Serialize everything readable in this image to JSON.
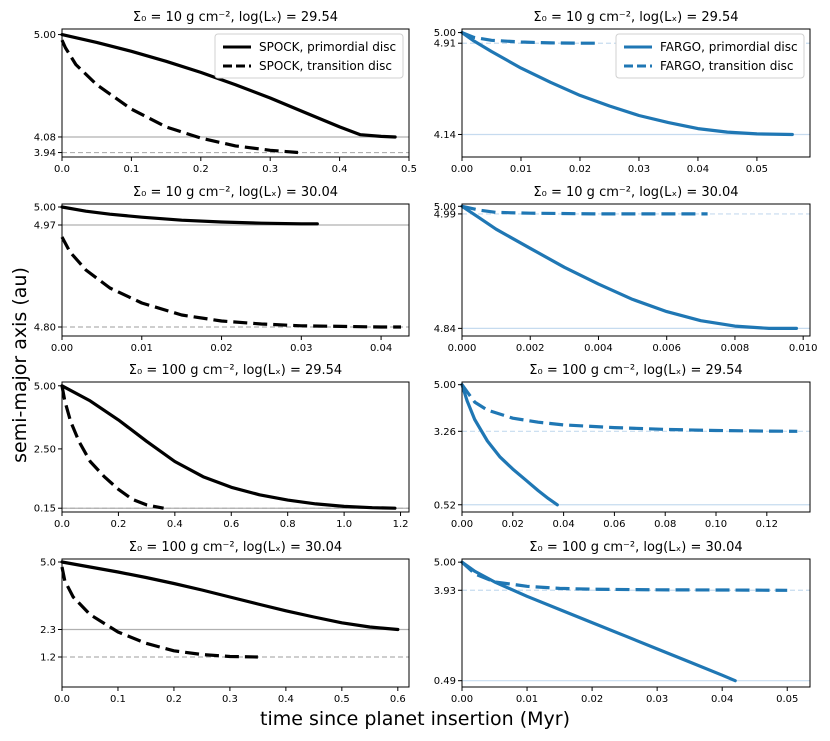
{
  "figure": {
    "ylabel": "semi-major axis (au)",
    "xlabel": "time since planet insertion (Myr)"
  },
  "colors": {
    "spock": "#000000",
    "fargo": "#1f77b4",
    "spock_ref": "#b0b0b0",
    "fargo_ref": "#c6dbef"
  },
  "chart_data": [
    {
      "type": "line",
      "title": "Σ₀ = 10 g cm⁻², log(Lₓ) = 29.54",
      "code": "SPOCK",
      "xlim": [
        0,
        0.5
      ],
      "ylim": [
        3.9,
        5.05
      ],
      "xticks": [
        0,
        0.1,
        0.2,
        0.3,
        0.4,
        0.5
      ],
      "xticklabels": [
        "0.0",
        "0.1",
        "0.2",
        "0.3",
        "0.4",
        "0.5"
      ],
      "yticks": [
        5.0,
        4.08,
        3.94
      ],
      "yticklabels": [
        "5.00",
        "4.08",
        "3.94"
      ],
      "legend": [
        "SPOCK, primordial disc",
        "SPOCK, transition disc"
      ],
      "legend_loc": "top-right",
      "series": [
        {
          "name": "SPOCK, primordial disc",
          "style": "solid",
          "ref": 4.08,
          "x": [
            0,
            0.05,
            0.1,
            0.15,
            0.2,
            0.25,
            0.3,
            0.35,
            0.4,
            0.43,
            0.46,
            0.48
          ],
          "y": [
            5.0,
            4.93,
            4.85,
            4.76,
            4.66,
            4.55,
            4.43,
            4.3,
            4.17,
            4.1,
            4.085,
            4.08
          ]
        },
        {
          "name": "SPOCK, transition disc",
          "style": "dashed",
          "ref": 3.94,
          "x": [
            0,
            0.005,
            0.02,
            0.05,
            0.1,
            0.15,
            0.2,
            0.25,
            0.3,
            0.34
          ],
          "y": [
            4.95,
            4.88,
            4.73,
            4.55,
            4.33,
            4.17,
            4.07,
            4.0,
            3.96,
            3.94
          ]
        }
      ]
    },
    {
      "type": "line",
      "title": "Σ₀ = 10 g cm⁻², log(Lₓ) = 29.54",
      "code": "FARGO",
      "xlim": [
        0,
        0.059
      ],
      "ylim": [
        3.95,
        5.03
      ],
      "xticks": [
        0,
        0.01,
        0.02,
        0.03,
        0.04,
        0.05
      ],
      "xticklabels": [
        "0.00",
        "0.01",
        "0.02",
        "0.03",
        "0.04",
        "0.05"
      ],
      "yticks": [
        5.0,
        4.91,
        4.14
      ],
      "yticklabels": [
        "5.00",
        "4.91",
        "4.14"
      ],
      "legend": [
        "FARGO, primordial disc",
        "FARGO, transition disc"
      ],
      "legend_loc": "top-right",
      "series": [
        {
          "name": "FARGO, primordial disc",
          "style": "solid",
          "ref": 4.14,
          "x": [
            0,
            0.002,
            0.005,
            0.01,
            0.015,
            0.02,
            0.025,
            0.03,
            0.035,
            0.04,
            0.045,
            0.05,
            0.056
          ],
          "y": [
            5.0,
            4.93,
            4.84,
            4.7,
            4.58,
            4.47,
            4.38,
            4.3,
            4.24,
            4.19,
            4.16,
            4.145,
            4.14
          ]
        },
        {
          "name": "FARGO, transition disc",
          "style": "dashed",
          "ref": 4.91,
          "x": [
            0,
            0.002,
            0.005,
            0.01,
            0.015,
            0.02,
            0.0235
          ],
          "y": [
            5.0,
            4.96,
            4.935,
            4.92,
            4.913,
            4.91,
            4.91
          ]
        }
      ]
    },
    {
      "type": "line",
      "title": "Σ₀ = 10 g cm⁻², log(Lₓ) = 30.04",
      "code": "SPOCK",
      "xlim": [
        0,
        0.0435
      ],
      "ylim": [
        4.785,
        5.005
      ],
      "xticks": [
        0,
        0.01,
        0.02,
        0.03,
        0.04
      ],
      "xticklabels": [
        "0.00",
        "0.01",
        "0.02",
        "0.03",
        "0.04"
      ],
      "yticks": [
        5.0,
        4.97,
        4.8
      ],
      "yticklabels": [
        "5.00",
        "4.97",
        "4.80"
      ],
      "series": [
        {
          "name": "SPOCK, primordial disc",
          "style": "solid",
          "ref": 4.97,
          "x": [
            0,
            0.003,
            0.006,
            0.01,
            0.015,
            0.02,
            0.025,
            0.03,
            0.032
          ],
          "y": [
            5.0,
            4.993,
            4.988,
            4.983,
            4.978,
            4.975,
            4.973,
            4.972,
            4.972
          ]
        },
        {
          "name": "SPOCK, transition disc",
          "style": "dashed",
          "ref": 4.8,
          "x": [
            0,
            0.001,
            0.003,
            0.006,
            0.01,
            0.015,
            0.02,
            0.025,
            0.03,
            0.035,
            0.04,
            0.0425
          ],
          "y": [
            4.95,
            4.925,
            4.895,
            4.865,
            4.84,
            4.82,
            4.81,
            4.805,
            4.802,
            4.801,
            4.8,
            4.8
          ]
        }
      ]
    },
    {
      "type": "line",
      "title": "Σ₀ = 10 g cm⁻², log(Lₓ) = 30.04",
      "code": "FARGO",
      "xlim": [
        0,
        0.0102
      ],
      "ylim": [
        4.83,
        5.003
      ],
      "xticks": [
        0,
        0.002,
        0.004,
        0.006,
        0.008,
        0.01
      ],
      "xticklabels": [
        "0.000",
        "0.002",
        "0.004",
        "0.006",
        "0.008",
        "0.010"
      ],
      "yticks": [
        5.0,
        4.99,
        4.84
      ],
      "yticklabels": [
        "5.00",
        "4.99",
        "4.84"
      ],
      "series": [
        {
          "name": "FARGO, primordial disc",
          "style": "solid",
          "ref": 4.84,
          "x": [
            0,
            0.0005,
            0.001,
            0.002,
            0.003,
            0.004,
            0.005,
            0.006,
            0.007,
            0.008,
            0.009,
            0.0098
          ],
          "y": [
            5.0,
            4.985,
            4.97,
            4.945,
            4.92,
            4.898,
            4.878,
            4.862,
            4.85,
            4.843,
            4.84,
            4.84
          ]
        },
        {
          "name": "FARGO, transition disc",
          "style": "dashed",
          "ref": 4.99,
          "x": [
            0,
            0.0005,
            0.001,
            0.002,
            0.004,
            0.006,
            0.0072
          ],
          "y": [
            5.0,
            4.995,
            4.992,
            4.991,
            4.99,
            4.99,
            4.99
          ]
        }
      ]
    },
    {
      "type": "line",
      "title": "Σ₀ = 100 g cm⁻², log(Lₓ) = 29.54",
      "code": "SPOCK",
      "xlim": [
        0,
        1.23
      ],
      "ylim": [
        0.0,
        5.15
      ],
      "xticks": [
        0,
        0.2,
        0.4,
        0.6,
        0.8,
        1.0,
        1.2
      ],
      "xticklabels": [
        "0.0",
        "0.2",
        "0.4",
        "0.6",
        "0.8",
        "1.0",
        "1.2"
      ],
      "yticks": [
        5.0,
        2.5,
        0.15
      ],
      "yticklabels": [
        "5.00",
        "2.50",
        "0.15"
      ],
      "series": [
        {
          "name": "SPOCK, primordial disc",
          "style": "solid",
          "ref": 0.15,
          "x": [
            0,
            0.1,
            0.2,
            0.3,
            0.4,
            0.5,
            0.6,
            0.7,
            0.8,
            0.9,
            1.0,
            1.1,
            1.18
          ],
          "y": [
            5.0,
            4.4,
            3.65,
            2.8,
            2.0,
            1.4,
            0.98,
            0.68,
            0.47,
            0.32,
            0.22,
            0.17,
            0.15
          ]
        },
        {
          "name": "SPOCK, transition disc",
          "style": "dashed",
          "ref": 0.15,
          "x": [
            0,
            0.01,
            0.03,
            0.06,
            0.1,
            0.15,
            0.2,
            0.25,
            0.3,
            0.36
          ],
          "y": [
            5.0,
            4.4,
            3.6,
            2.8,
            2.0,
            1.4,
            0.9,
            0.5,
            0.28,
            0.15
          ]
        }
      ]
    },
    {
      "type": "line",
      "title": "Σ₀ = 100 g cm⁻², log(Lₓ) = 29.54",
      "code": "FARGO",
      "xlim": [
        0,
        0.137
      ],
      "ylim": [
        0.25,
        5.1
      ],
      "xticks": [
        0,
        0.02,
        0.04,
        0.06,
        0.08,
        0.1,
        0.12
      ],
      "xticklabels": [
        "0.00",
        "0.02",
        "0.04",
        "0.06",
        "0.08",
        "0.10",
        "0.12"
      ],
      "yticks": [
        5.0,
        3.26,
        0.52
      ],
      "yticklabels": [
        "5.00",
        "3.26",
        "0.52"
      ],
      "series": [
        {
          "name": "FARGO, primordial disc",
          "style": "solid",
          "ref": 0.52,
          "x": [
            0,
            0.002,
            0.005,
            0.01,
            0.015,
            0.02,
            0.025,
            0.03,
            0.034,
            0.0375
          ],
          "y": [
            5.0,
            4.4,
            3.7,
            2.9,
            2.3,
            1.85,
            1.45,
            1.05,
            0.75,
            0.52
          ]
        },
        {
          "name": "FARGO, transition disc",
          "style": "dashed",
          "ref": 3.26,
          "x": [
            0,
            0.005,
            0.01,
            0.02,
            0.03,
            0.04,
            0.06,
            0.08,
            0.1,
            0.12,
            0.132
          ],
          "y": [
            5.0,
            4.35,
            4.05,
            3.75,
            3.6,
            3.5,
            3.4,
            3.33,
            3.29,
            3.27,
            3.26
          ]
        }
      ]
    },
    {
      "type": "line",
      "title": "Σ₀ = 100 g cm⁻², log(Lₓ) = 30.04",
      "code": "SPOCK",
      "xlim": [
        0,
        0.62
      ],
      "ylim": [
        0.0,
        5.12
      ],
      "xticks": [
        0,
        0.1,
        0.2,
        0.3,
        0.4,
        0.5,
        0.6
      ],
      "xticklabels": [
        "0.0",
        "0.1",
        "0.2",
        "0.3",
        "0.4",
        "0.5",
        "0.6"
      ],
      "yticks": [
        5.0,
        2.3,
        1.2
      ],
      "yticklabels": [
        "5.0",
        "2.3",
        "1.2"
      ],
      "series": [
        {
          "name": "SPOCK, primordial disc",
          "style": "solid",
          "ref": 2.3,
          "x": [
            0,
            0.05,
            0.1,
            0.15,
            0.2,
            0.25,
            0.3,
            0.35,
            0.4,
            0.45,
            0.5,
            0.55,
            0.6
          ],
          "y": [
            5.0,
            4.8,
            4.6,
            4.38,
            4.14,
            3.88,
            3.6,
            3.32,
            3.05,
            2.8,
            2.57,
            2.4,
            2.3
          ]
        },
        {
          "name": "SPOCK, transition disc",
          "style": "dashed",
          "ref": 1.2,
          "x": [
            0,
            0.005,
            0.02,
            0.05,
            0.1,
            0.15,
            0.2,
            0.25,
            0.3,
            0.35
          ],
          "y": [
            4.8,
            4.25,
            3.6,
            2.9,
            2.2,
            1.75,
            1.45,
            1.3,
            1.22,
            1.2
          ]
        }
      ]
    },
    {
      "type": "line",
      "title": "Σ₀ = 100 g cm⁻², log(Lₓ) = 30.04",
      "code": "FARGO",
      "xlim": [
        0,
        0.0535
      ],
      "ylim": [
        0.25,
        5.12
      ],
      "xticks": [
        0,
        0.01,
        0.02,
        0.03,
        0.04,
        0.05
      ],
      "xticklabels": [
        "0.00",
        "0.01",
        "0.02",
        "0.03",
        "0.04",
        "0.05"
      ],
      "yticks": [
        5.0,
        3.93,
        0.49
      ],
      "yticklabels": [
        "5.00",
        "3.93",
        "0.49"
      ],
      "series": [
        {
          "name": "FARGO, primordial disc",
          "style": "solid",
          "ref": 0.49,
          "x": [
            0,
            0.002,
            0.005,
            0.01,
            0.015,
            0.02,
            0.025,
            0.03,
            0.035,
            0.04,
            0.042
          ],
          "y": [
            5.0,
            4.65,
            4.25,
            3.7,
            3.2,
            2.7,
            2.2,
            1.7,
            1.2,
            0.7,
            0.49
          ]
        },
        {
          "name": "FARGO, transition disc",
          "style": "dashed",
          "ref": 3.93,
          "x": [
            0,
            0.002,
            0.005,
            0.01,
            0.015,
            0.02,
            0.03,
            0.04,
            0.05
          ],
          "y": [
            5.0,
            4.55,
            4.25,
            4.08,
            4.0,
            3.97,
            3.95,
            3.94,
            3.93
          ]
        }
      ]
    }
  ]
}
